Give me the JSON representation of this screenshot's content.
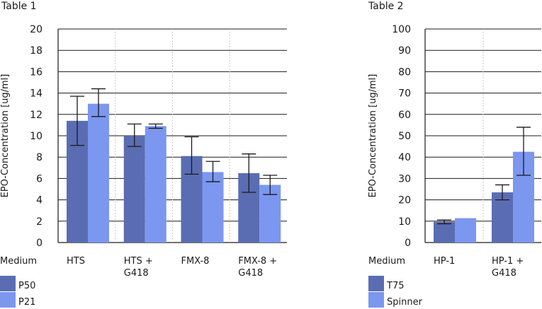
{
  "chart_data": [
    {
      "type": "bar",
      "title": "Table 1",
      "ylabel": "EPO-Concentration [ug/ml]",
      "xlabel": "Medium",
      "ylim": [
        0,
        20
      ],
      "yticks": [
        0,
        2,
        4,
        6,
        8,
        10,
        12,
        14,
        16,
        18,
        20
      ],
      "categories": [
        "HTS",
        "HTS + G418",
        "FMX-8",
        "FMX-8 + G418"
      ],
      "category_lines": [
        [
          "HTS"
        ],
        [
          "HTS +",
          "G418"
        ],
        [
          "FMX-8"
        ],
        [
          "FMX-8 +",
          "G418"
        ]
      ],
      "series": [
        {
          "name": "P50",
          "color": "#5a6db3",
          "values": [
            11.4,
            10.0,
            8.1,
            6.5
          ],
          "error_low": [
            9.1,
            9.0,
            6.4,
            4.7
          ],
          "error_high": [
            13.7,
            11.1,
            9.9,
            8.3
          ]
        },
        {
          "name": "P21",
          "color": "#7b97f0",
          "values": [
            13.0,
            10.9,
            6.6,
            5.4
          ],
          "error_low": [
            11.8,
            10.7,
            5.7,
            4.5
          ],
          "error_high": [
            14.4,
            11.1,
            7.6,
            6.3
          ]
        }
      ],
      "legend": [
        "P50",
        "P21"
      ]
    },
    {
      "type": "bar",
      "title": "Table 2",
      "ylabel": "EPO-Concentration [ug/ml]",
      "xlabel": "Medium",
      "ylim": [
        0,
        100
      ],
      "yticks": [
        0,
        10,
        20,
        30,
        40,
        50,
        60,
        70,
        80,
        90,
        100
      ],
      "categories": [
        "HP-1",
        "HP-1 + G418"
      ],
      "category_lines": [
        [
          "HP-1"
        ],
        [
          "HP-1 +",
          "G418"
        ]
      ],
      "series": [
        {
          "name": "T75",
          "color": "#5a6db3",
          "values": [
            9.7,
            23.5
          ],
          "error_low": [
            8.8,
            20.0
          ],
          "error_high": [
            10.6,
            27.0
          ]
        },
        {
          "name": "Spinner",
          "color": "#7b97f0",
          "values": [
            11.4,
            42.5
          ],
          "error_low": null,
          "error_high": null,
          "error_low_list": [
            11.4,
            31.5
          ],
          "error_high_list": [
            11.4,
            54.0
          ]
        }
      ],
      "legend": [
        "T75",
        "Spinner"
      ]
    }
  ]
}
